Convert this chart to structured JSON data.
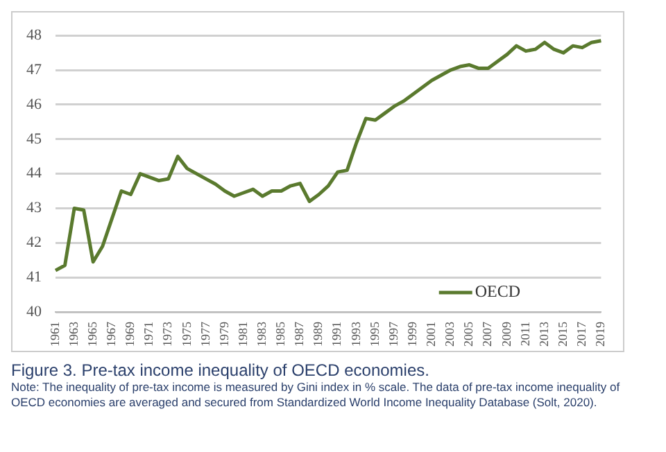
{
  "chart_data": {
    "type": "line",
    "title": "Figure 3. Pre-tax income inequality of OECD economies.",
    "annotations": [
      "Note: The inequality of pre-tax income is measured by Gini index in % scale. The data of pre-tax income inequality of OECD economies are averaged and secured from Standardized World Income Inequality Database (Solt, 2020)."
    ],
    "categories": [
      "1961",
      null,
      "1963",
      null,
      "1965",
      null,
      "1967",
      null,
      "1969",
      null,
      "1971",
      null,
      "1973",
      null,
      "1975",
      null,
      "1977",
      null,
      "1979",
      null,
      "1981",
      null,
      "1983",
      null,
      "1985",
      null,
      "1987",
      null,
      "1989",
      null,
      "1991",
      null,
      "1993",
      null,
      "1995",
      null,
      "1997",
      null,
      "1999",
      null,
      "2001",
      null,
      "2003",
      null,
      "2005",
      null,
      "2007",
      null,
      "2009",
      null,
      "2011",
      null,
      "2013",
      null,
      "2015",
      null,
      "2017",
      null,
      "2019"
    ],
    "series": [
      {
        "name": "OECD",
        "color": "#5a7a2e",
        "values": [
          41.2,
          41.35,
          43.0,
          42.95,
          41.45,
          41.9,
          42.7,
          43.5,
          43.4,
          44.0,
          43.9,
          43.8,
          43.85,
          44.5,
          44.15,
          44.0,
          43.85,
          43.7,
          43.5,
          43.35,
          43.45,
          43.55,
          43.35,
          43.5,
          43.5,
          43.65,
          43.72,
          43.2,
          43.4,
          43.65,
          44.05,
          44.1,
          44.9,
          45.6,
          45.55,
          45.75,
          45.95,
          46.1,
          46.3,
          46.5,
          46.7,
          46.85,
          47.0,
          47.1,
          47.15,
          47.05,
          47.05,
          47.25,
          47.45,
          47.7,
          47.55,
          47.6,
          47.8,
          47.6,
          47.5,
          47.7,
          47.65,
          47.8,
          47.85
        ]
      }
    ],
    "ylim": [
      40,
      48
    ],
    "yticks": [
      40,
      41,
      42,
      43,
      44,
      45,
      46,
      47,
      48
    ],
    "grid": "y",
    "legend": "bottom right",
    "marker": "none",
    "line_style": "solid"
  }
}
